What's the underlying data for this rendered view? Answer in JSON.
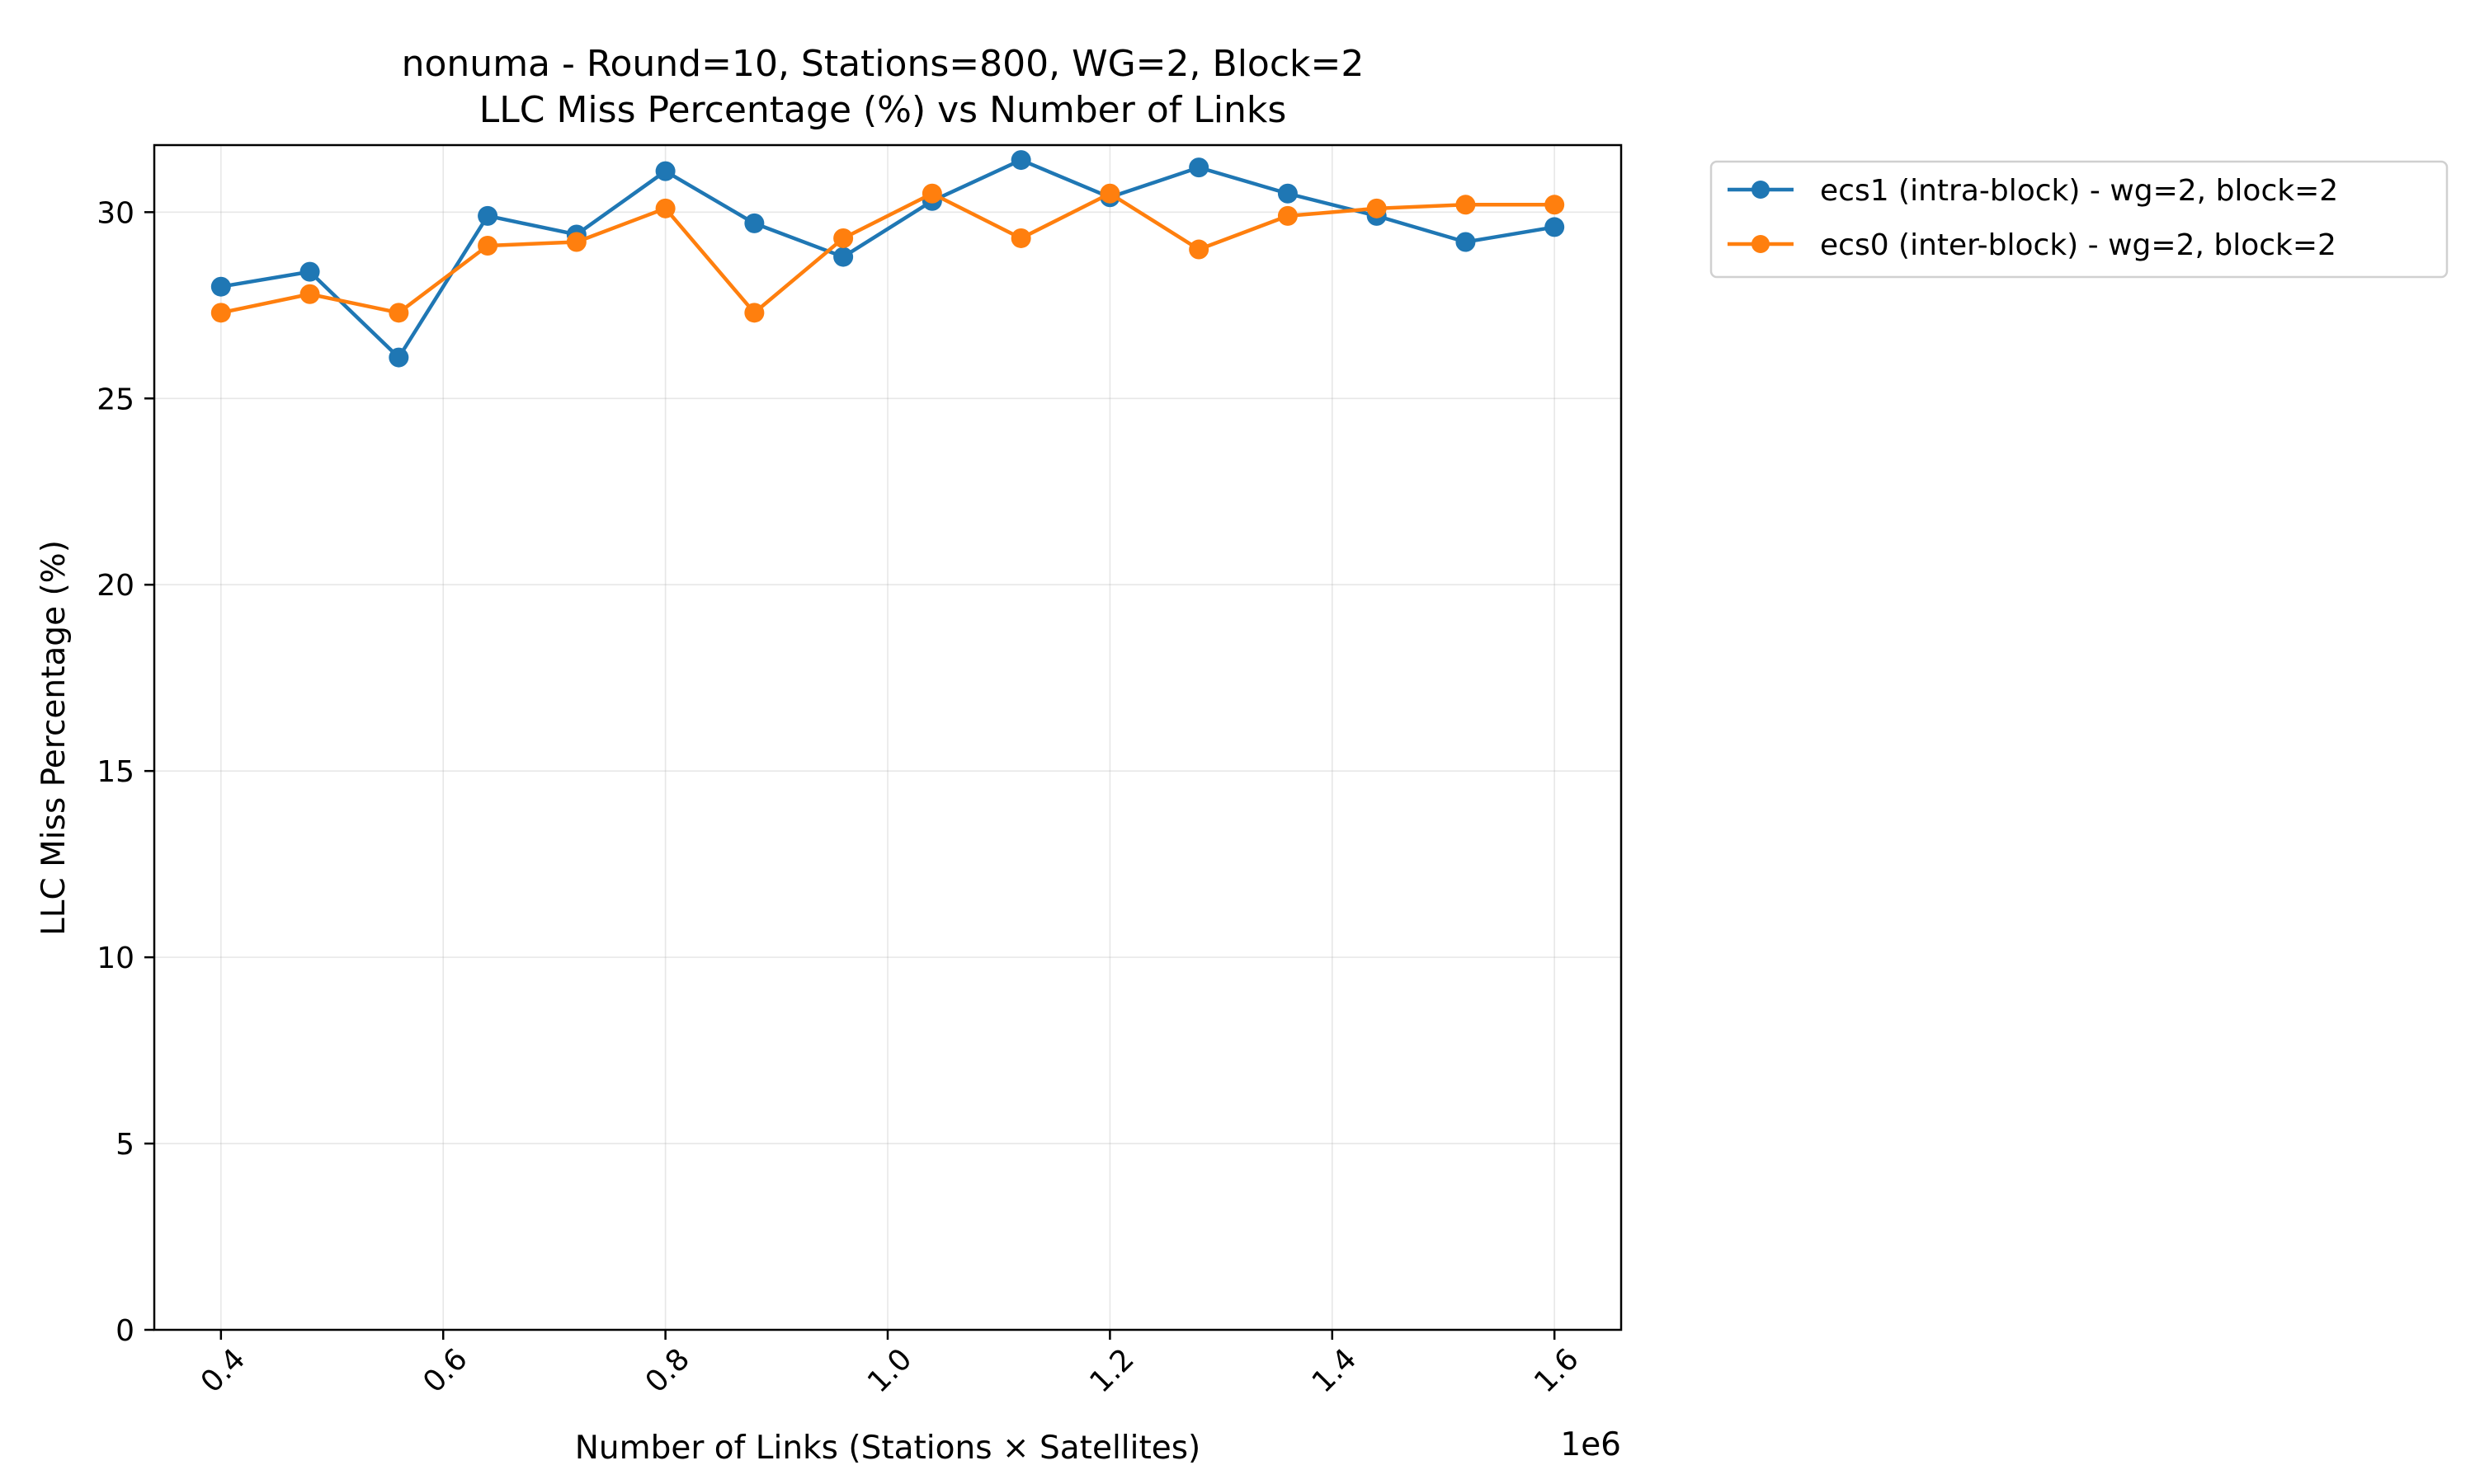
{
  "chart_data": {
    "type": "line",
    "title": "nonuma - Round=10, Stations=800, WG=2, Block=2",
    "subtitle": "LLC Miss Percentage (%) vs Number of Links",
    "xlabel": "Number of Links (Stations × Satellites)",
    "ylabel": "LLC Miss Percentage (%)",
    "x_offset_text": "1e6",
    "xlim": [
      0.34,
      1.66
    ],
    "ylim": [
      0,
      31.8
    ],
    "x_ticks": [
      0.4,
      0.6,
      0.8,
      1.0,
      1.2,
      1.4,
      1.6
    ],
    "x_tick_labels": [
      "0.4",
      "0.6",
      "0.8",
      "1.0",
      "1.2",
      "1.4",
      "1.6"
    ],
    "y_ticks": [
      0,
      5,
      10,
      15,
      20,
      25,
      30
    ],
    "y_tick_labels": [
      "0",
      "5",
      "10",
      "15",
      "20",
      "25",
      "30"
    ],
    "grid": true,
    "legend_position": "outside-upper-right",
    "x": [
      0.4,
      0.48,
      0.56,
      0.64,
      0.72,
      0.8,
      0.88,
      0.96,
      1.04,
      1.12,
      1.2,
      1.28,
      1.36,
      1.44,
      1.52,
      1.6
    ],
    "series": [
      {
        "name": "ecs1 (intra-block) - wg=2, block=2",
        "color": "#1f77b4",
        "values": [
          28.0,
          28.4,
          26.1,
          29.9,
          29.4,
          31.1,
          29.7,
          28.8,
          30.3,
          31.4,
          30.4,
          31.2,
          30.5,
          29.9,
          29.2,
          29.6
        ]
      },
      {
        "name": "ecs0 (inter-block) - wg=2, block=2",
        "color": "#ff7f0e",
        "values": [
          27.3,
          27.8,
          27.3,
          29.1,
          29.2,
          30.1,
          27.3,
          29.3,
          30.5,
          29.3,
          30.5,
          29.0,
          29.9,
          30.1,
          30.2,
          30.2
        ]
      }
    ]
  }
}
